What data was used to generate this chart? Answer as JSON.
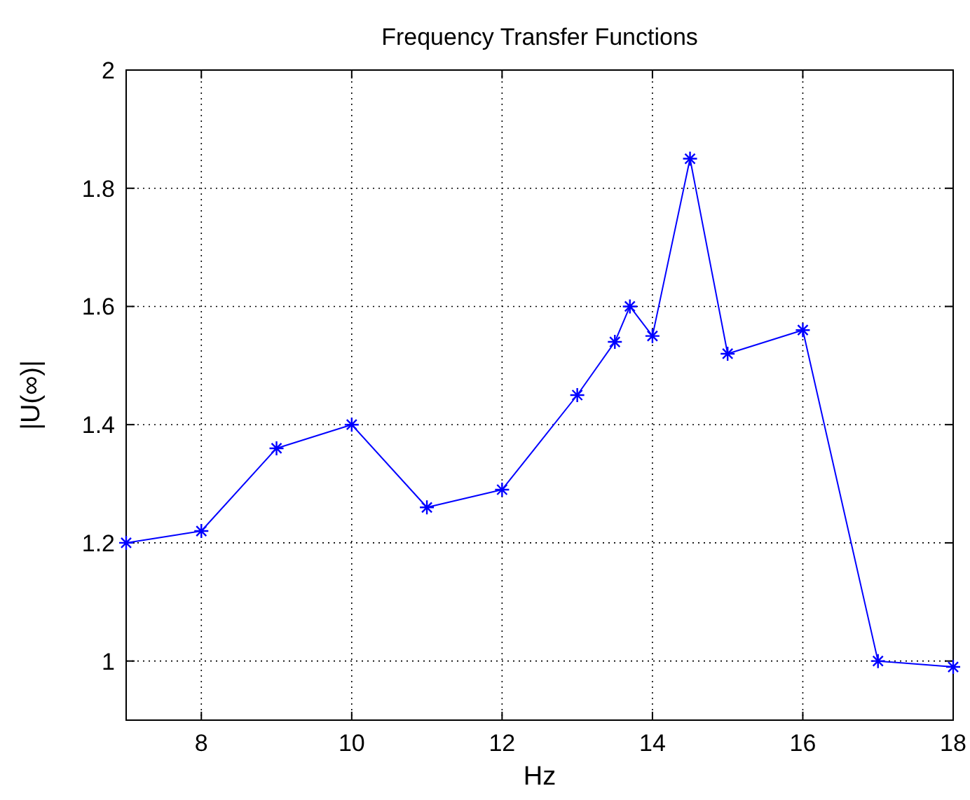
{
  "chart_data": {
    "type": "line",
    "title": "Frequency Transfer Functions",
    "xlabel": "Hz",
    "ylabel": "|U(∞)|",
    "x": [
      7,
      8,
      9,
      10,
      11,
      12,
      13,
      13.5,
      13.7,
      14,
      14.5,
      15,
      16,
      17,
      18
    ],
    "series": [
      {
        "color": "#0000ff",
        "values": [
          1.2,
          1.22,
          1.36,
          1.4,
          1.26,
          1.29,
          1.45,
          1.54,
          1.6,
          1.55,
          1.85,
          1.52,
          1.56,
          1.0,
          0.99
        ]
      }
    ],
    "xlim": [
      7,
      18
    ],
    "xticks": [
      8,
      10,
      12,
      14,
      16,
      18
    ],
    "ylim": [
      0.9,
      2
    ],
    "yticks": [
      1,
      1.2,
      1.4,
      1.6,
      1.8,
      2
    ],
    "grid": true,
    "marker": "cross",
    "line_style": "solid"
  }
}
